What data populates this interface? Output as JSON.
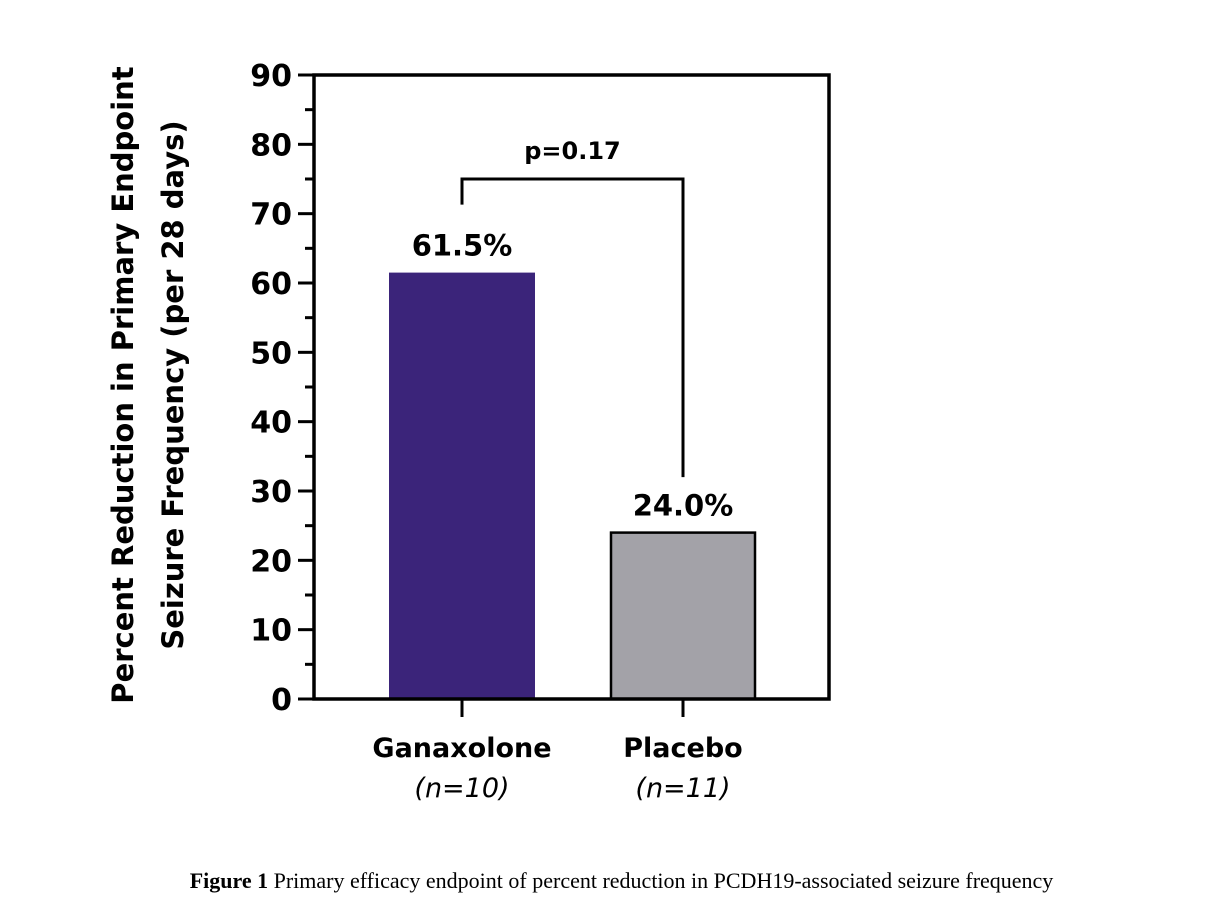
{
  "chart_data": {
    "type": "bar",
    "categories": [
      "Ganaxolone",
      "Placebo"
    ],
    "category_sublabels": [
      "(n=10)",
      "(n=11)"
    ],
    "values": [
      61.5,
      24.0
    ],
    "data_labels": [
      "61.5%",
      "24.0%"
    ],
    "colors": [
      "#3b247a",
      "#a3a2a8"
    ],
    "ylabel_lines": [
      "Percent Reduction in Primary Endpoint",
      "Seizure Frequency (per 28 days)"
    ],
    "xlabel": "",
    "ylim": [
      0,
      90
    ],
    "yticks": [
      0,
      10,
      20,
      30,
      40,
      50,
      60,
      70,
      80,
      90
    ],
    "grid": false,
    "annotation": {
      "text": "p=0.17",
      "bracket_top": 75,
      "left_end": 71.3,
      "right_end": 32
    }
  },
  "caption": {
    "label": "Figure 1",
    "text": " Primary efficacy endpoint of percent reduction in PCDH19-associated seizure frequency"
  }
}
